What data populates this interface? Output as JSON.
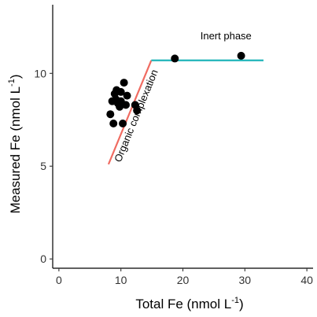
{
  "chart_data": {
    "type": "scatter",
    "xlabel": "Total Fe (nmol L",
    "xlabel_sup": "-1",
    "xlabel_end": ")",
    "ylabel": "Measured Fe (nmol L",
    "ylabel_sup": "-1",
    "ylabel_end": ")",
    "xlim": [
      -1,
      41
    ],
    "ylim": [
      -0.5,
      13.7
    ],
    "x_ticks": [
      0,
      10,
      20,
      30,
      40
    ],
    "y_ticks": [
      0,
      5,
      10
    ],
    "points": [
      {
        "x": 8.3,
        "y": 7.8
      },
      {
        "x": 8.6,
        "y": 8.5
      },
      {
        "x": 8.8,
        "y": 7.3
      },
      {
        "x": 9.0,
        "y": 8.9
      },
      {
        "x": 9.2,
        "y": 8.6
      },
      {
        "x": 9.3,
        "y": 9.1
      },
      {
        "x": 9.5,
        "y": 8.4
      },
      {
        "x": 9.8,
        "y": 8.2
      },
      {
        "x": 10.0,
        "y": 8.5
      },
      {
        "x": 10.0,
        "y": 9.0
      },
      {
        "x": 10.3,
        "y": 7.3
      },
      {
        "x": 10.5,
        "y": 9.5
      },
      {
        "x": 10.8,
        "y": 8.3
      },
      {
        "x": 11.0,
        "y": 8.8
      },
      {
        "x": 12.3,
        "y": 8.3
      },
      {
        "x": 12.6,
        "y": 8.0
      },
      {
        "x": 18.7,
        "y": 10.8
      },
      {
        "x": 29.4,
        "y": 10.95
      }
    ],
    "lines": [
      {
        "label": "Organic complexation",
        "color": "#f06b61",
        "x": [
          8.0,
          14.9
        ],
        "y": [
          5.1,
          10.7
        ]
      },
      {
        "label": "Inert phase",
        "color": "#1fb5b9",
        "x": [
          14.9,
          33.0
        ],
        "y": [
          10.7,
          10.7
        ]
      }
    ]
  }
}
